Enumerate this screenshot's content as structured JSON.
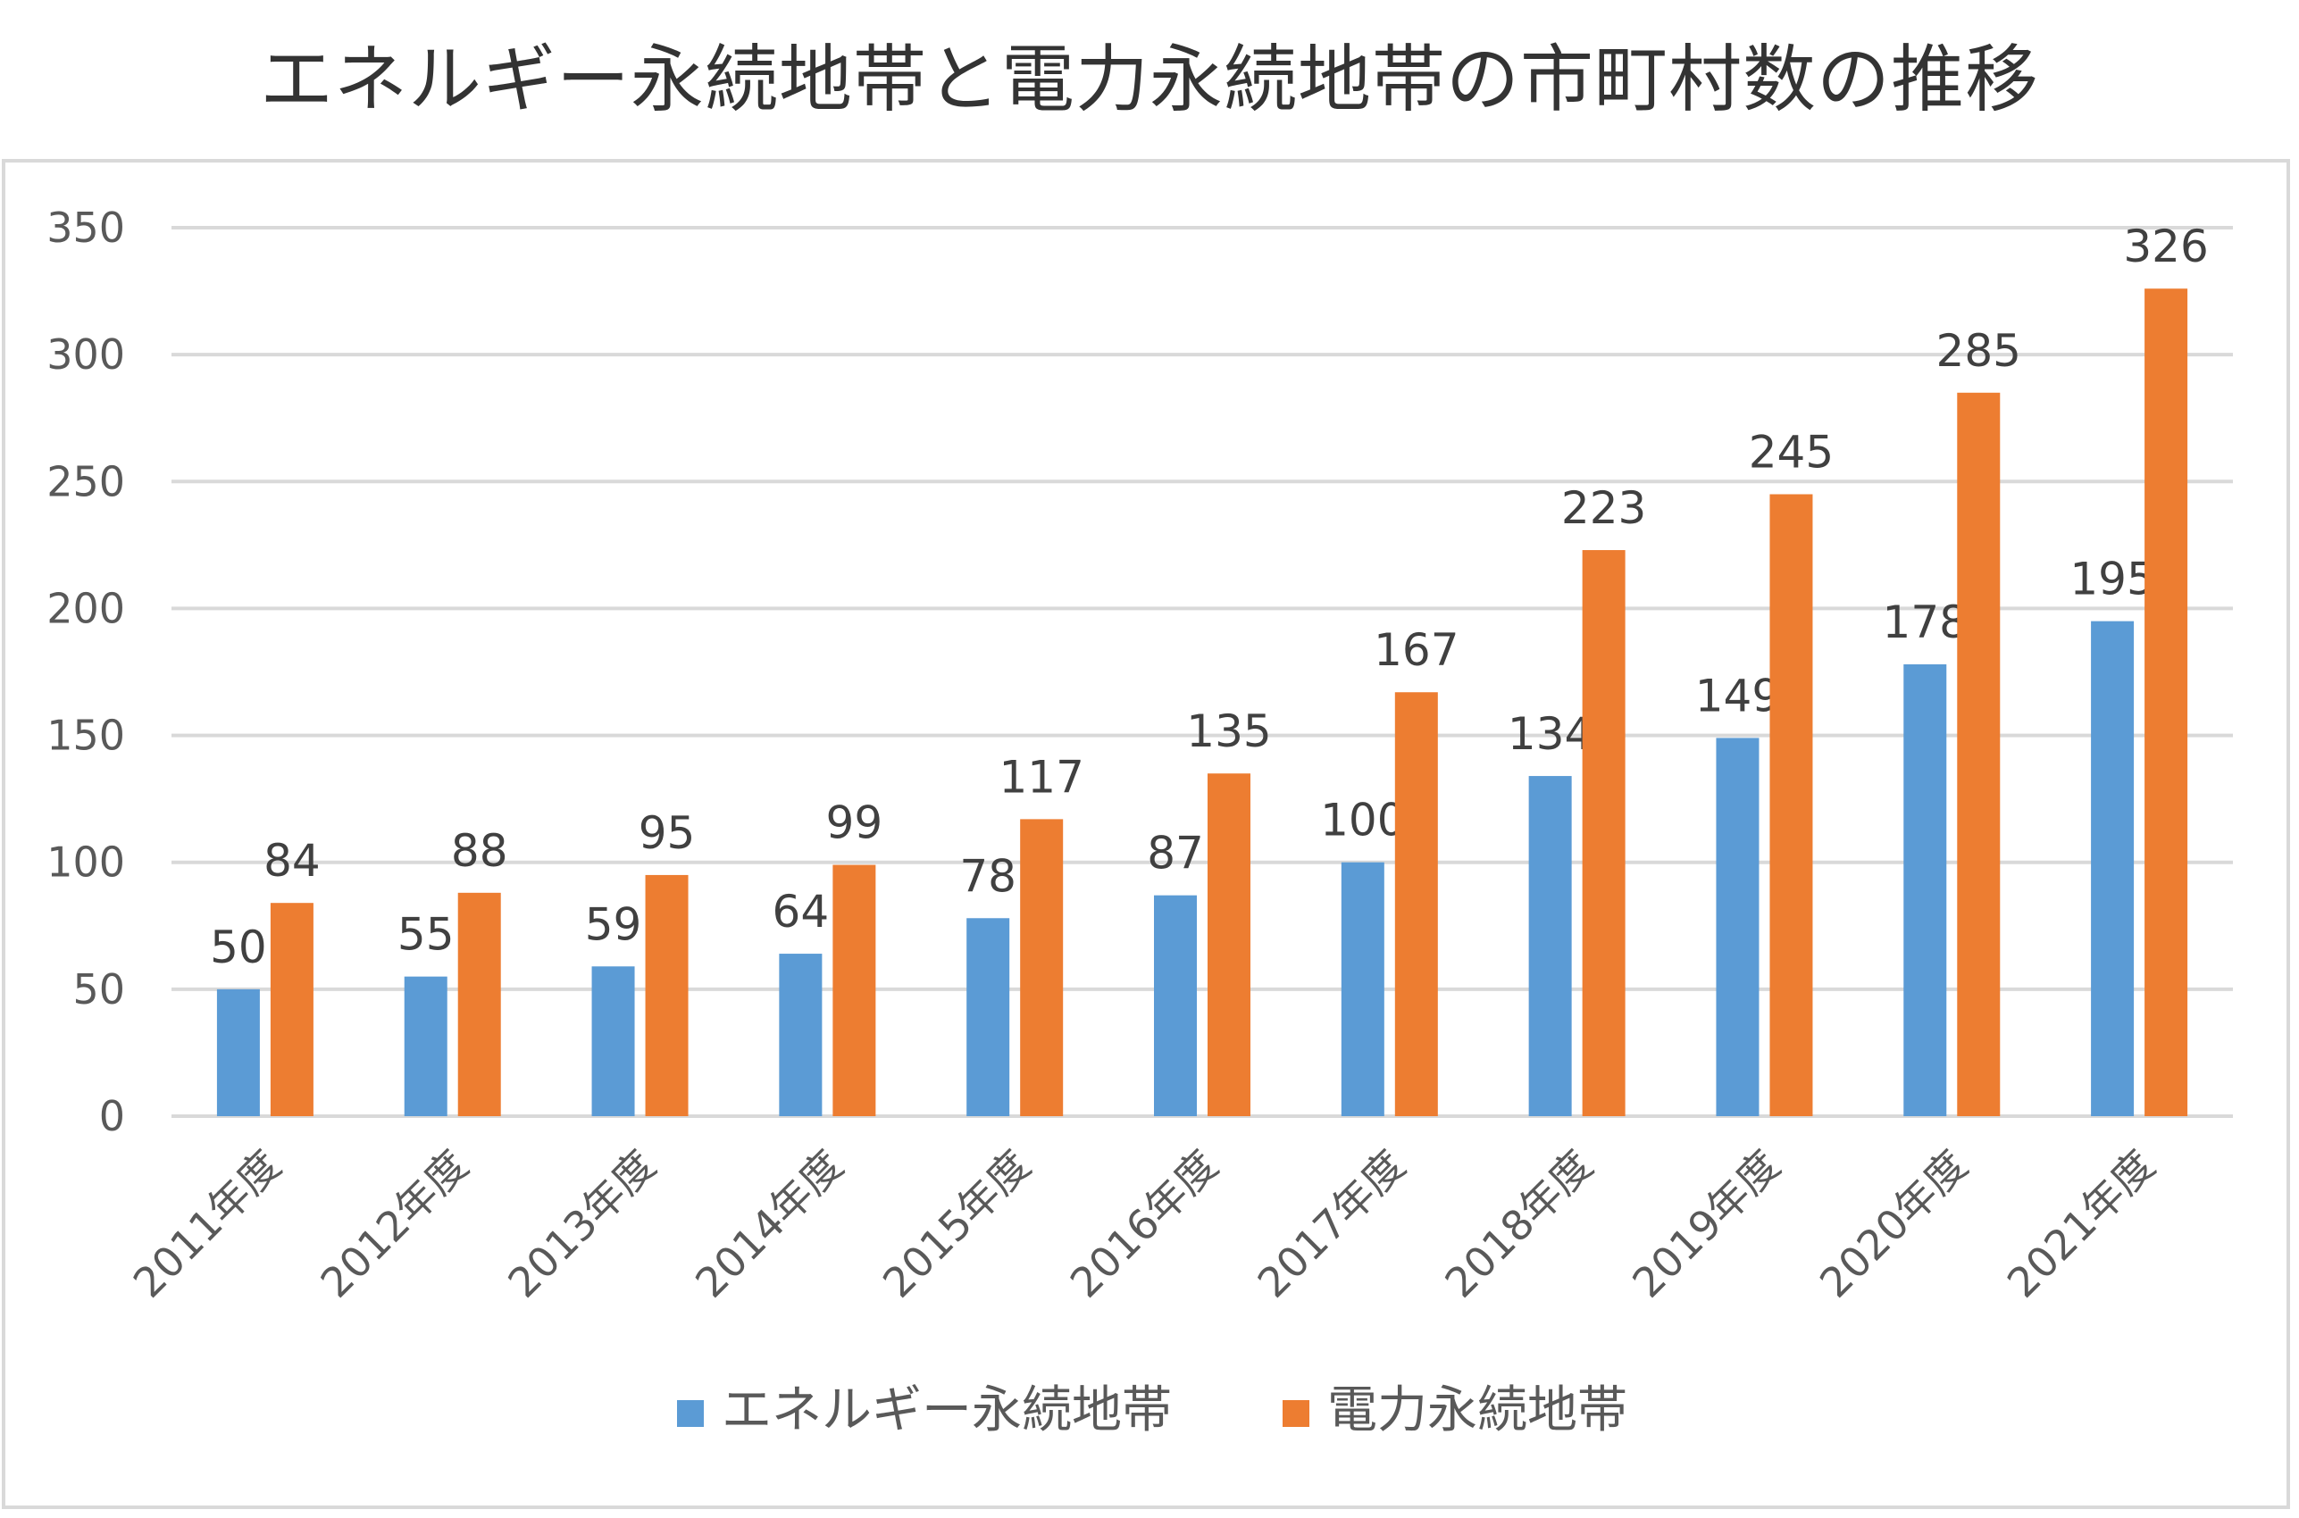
{
  "chart_data": {
    "type": "bar",
    "title": "エネルギー永続地帯と電力永続地帯の市町村数の推移",
    "xlabel": "",
    "ylabel": "",
    "ylim": [
      0,
      350
    ],
    "yticks": [
      0,
      50,
      100,
      150,
      200,
      250,
      300,
      350
    ],
    "categories": [
      "2011年度",
      "2012年度",
      "2013年度",
      "2014年度",
      "2015年度",
      "2016年度",
      "2017年度",
      "2018年度",
      "2019年度",
      "2020年度",
      "2021年度"
    ],
    "series": [
      {
        "name": "エネルギー永続地帯",
        "color": "#5b9bd5",
        "values": [
          50,
          55,
          59,
          64,
          78,
          87,
          100,
          134,
          149,
          178,
          195
        ]
      },
      {
        "name": "電力永続地帯",
        "color": "#ed7d31",
        "values": [
          84,
          88,
          95,
          99,
          117,
          135,
          167,
          223,
          245,
          285,
          326
        ]
      }
    ],
    "grid": true,
    "legend": "bottom"
  }
}
